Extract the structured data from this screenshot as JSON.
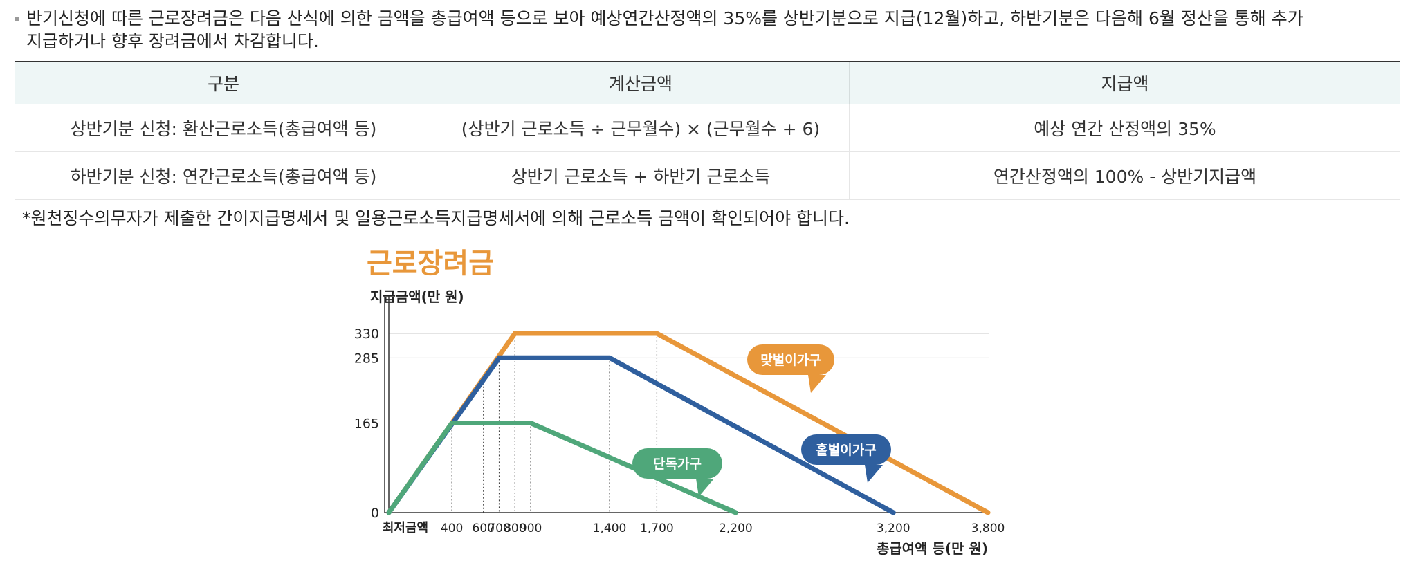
{
  "intro": {
    "text_line1": "반기신청에 따른 근로장려금은 다음 산식에 의한 금액을 총급여액 등으로 보아 예상연간산정액의 35%를 상반기분으로 지급(12월)하고, 하반기분은 다음해 6월 정산을 통해 추가",
    "text_line2": "지급하거나 향후 장려금에서 차감합니다."
  },
  "table": {
    "headers": [
      "구분",
      "계산금액",
      "지급액"
    ],
    "rows": [
      [
        "상반기분 신청: 환산근로소득(총급여액 등)",
        "(상반기 근로소득 ÷ 근무월수) × (근무월수 + 6)",
        "예상 연간 산정액의 35%"
      ],
      [
        "하반기분 신청: 연간근로소득(총급여액 등)",
        "상반기 근로소득 + 하반기 근로소득",
        "연간산정액의 100% - 상반기지급액"
      ]
    ]
  },
  "note": "*원천징수의무자가 제출한 간이지급명세서 및 일용근로소득지급명세서에 의해 근로소득 금액이 확인되어야 합니다.",
  "chart_data": {
    "type": "line",
    "title": "근로장려금",
    "ylabel": "지급금액(만 원)",
    "xlabel": "총급여액 등(만 원)",
    "x_ticks": [
      {
        "x": 0,
        "label": "최저금액"
      },
      {
        "x": 400,
        "label": "400"
      },
      {
        "x": 600,
        "label": "600"
      },
      {
        "x": 700,
        "label": "700"
      },
      {
        "x": 800,
        "label": "800"
      },
      {
        "x": 900,
        "label": "900"
      },
      {
        "x": 1400,
        "label": "1,400"
      },
      {
        "x": 1700,
        "label": "1,700"
      },
      {
        "x": 2200,
        "label": "2,200"
      },
      {
        "x": 3200,
        "label": "3,200"
      },
      {
        "x": 3800,
        "label": "3,800"
      }
    ],
    "y_ticks": [
      0,
      165,
      285,
      330
    ],
    "xlim": [
      0,
      3800
    ],
    "ylim": [
      0,
      360
    ],
    "series": [
      {
        "name": "맞벌이가구",
        "color": "#e8973a",
        "x": [
          0,
          800,
          1700,
          3800
        ],
        "y": [
          0,
          330,
          330,
          0
        ]
      },
      {
        "name": "홑벌이가구",
        "color": "#2f5f9e",
        "x": [
          0,
          700,
          1400,
          3200
        ],
        "y": [
          0,
          285,
          285,
          0
        ]
      },
      {
        "name": "단독가구",
        "color": "#4fa77a",
        "x": [
          0,
          400,
          900,
          2200
        ],
        "y": [
          0,
          165,
          165,
          0
        ]
      }
    ]
  }
}
